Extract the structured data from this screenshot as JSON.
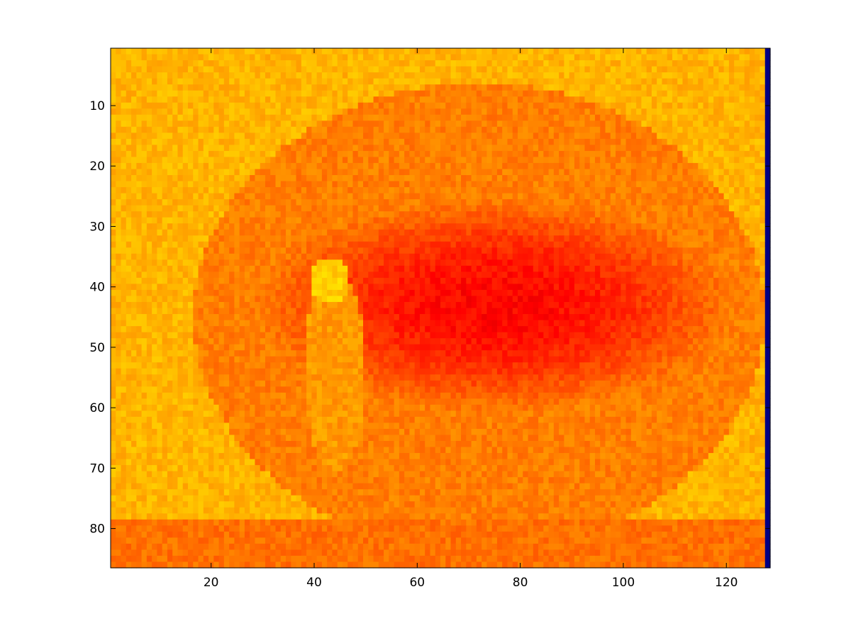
{
  "chart_data": {
    "type": "heatmap",
    "title": "",
    "xlabel": "",
    "ylabel": "",
    "colormap": "hot",
    "grid": false,
    "legend": "none",
    "image_size": {
      "columns": 128,
      "rows": 86
    },
    "xlim": [
      0.5,
      128.5
    ],
    "ylim": [
      0.5,
      86.5
    ],
    "y_direction": "reverse",
    "x_ticks": [
      20,
      40,
      60,
      80,
      100,
      120
    ],
    "y_ticks": [
      10,
      20,
      30,
      40,
      50,
      60,
      70,
      80
    ],
    "x_tick_labels": [
      "20",
      "40",
      "60",
      "80",
      "100",
      "120"
    ],
    "y_tick_labels": [
      "10",
      "20",
      "30",
      "40",
      "50",
      "60",
      "70",
      "80"
    ],
    "regions": {
      "background_level": 0.56,
      "outer_ring_level": 0.64,
      "dark_ellipse": {
        "center": [
          75,
          43
        ],
        "radii": [
          37,
          14
        ],
        "level": 0.38
      },
      "figure_body": {
        "center": [
          44,
          54
        ],
        "radii": [
          6,
          17
        ],
        "level": 0.6
      },
      "figure_head": {
        "center": [
          43,
          39
        ],
        "radii": [
          4,
          4
        ],
        "level": 0.68
      },
      "last_column_level": 0.02
    }
  }
}
